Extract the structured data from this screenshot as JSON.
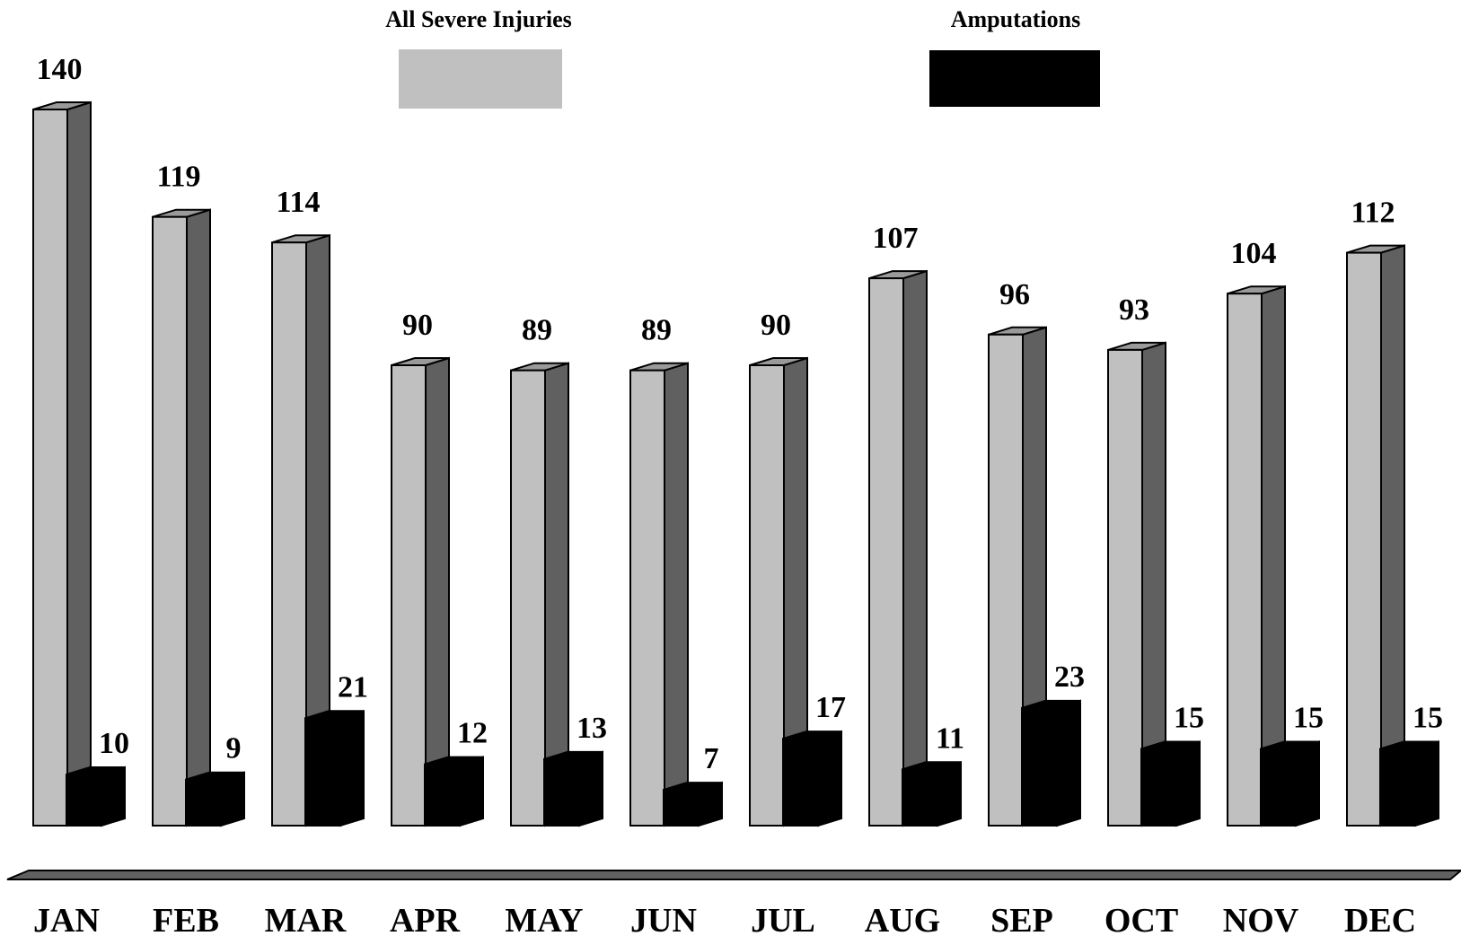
{
  "chart_data": {
    "type": "bar",
    "categories": [
      "JAN",
      "FEB",
      "MAR",
      "APR",
      "MAY",
      "JUN",
      "JUL",
      "AUG",
      "SEP",
      "OCT",
      "NOV",
      "DEC"
    ],
    "series": [
      {
        "name": "All Severe Injuries",
        "values": [
          140,
          119,
          114,
          90,
          89,
          89,
          90,
          107,
          96,
          93,
          104,
          112
        ],
        "color": "#c0c0c0"
      },
      {
        "name": "Amputations",
        "values": [
          10,
          9,
          21,
          12,
          13,
          7,
          17,
          11,
          23,
          15,
          15,
          15
        ],
        "color": "#000000"
      }
    ],
    "title": "",
    "xlabel": "",
    "ylabel": "",
    "ylim": [
      0,
      140
    ],
    "grid": false,
    "legend_position": "top",
    "style": "3d-columns",
    "data_labels": true
  }
}
